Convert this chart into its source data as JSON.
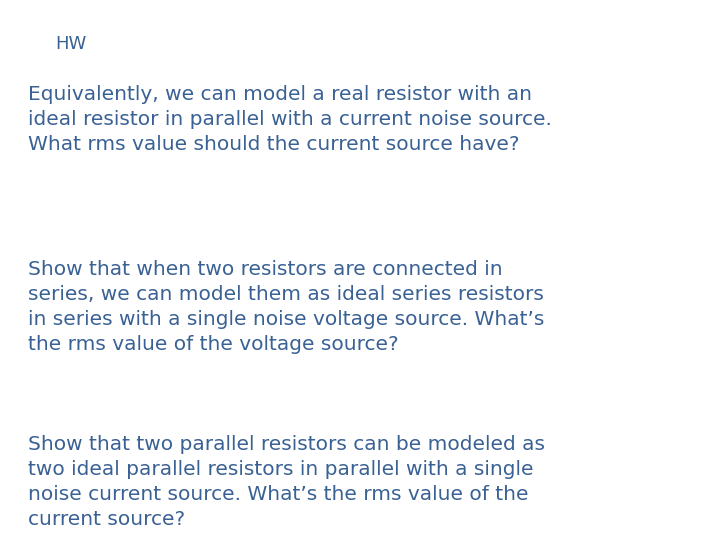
{
  "background_color": "#ffffff",
  "text_color": "#3a6194",
  "hw_label": "HW",
  "hw_fontsize": 13,
  "paragraphs": [
    {
      "text": "Equivalently, we can model a real resistor with an\nideal resistor in parallel with a current noise source.\nWhat rms value should the current source have?",
      "fontsize": 14.5
    },
    {
      "text": "Show that when two resistors are connected in\nseries, we can model them as ideal series resistors\nin series with a single noise voltage source. What’s\nthe rms value of the voltage source?",
      "fontsize": 14.5
    },
    {
      "text": "Show that two parallel resistors can be modeled as\ntwo ideal parallel resistors in parallel with a single\nnoise current source. What’s the rms value of the\ncurrent source?",
      "fontsize": 14.5
    }
  ]
}
